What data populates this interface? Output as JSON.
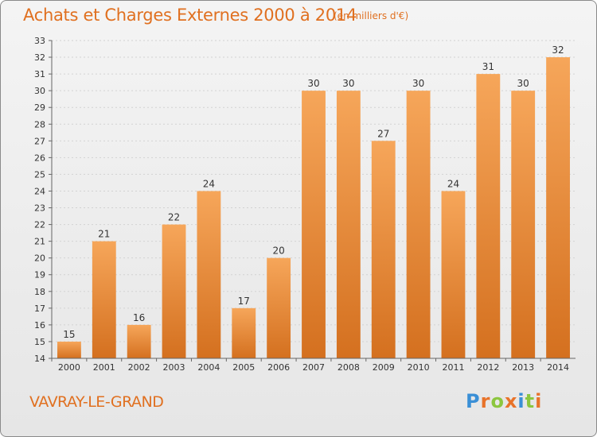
{
  "title": "Achats et Charges Externes 2000 à 2014",
  "subtitle": "(en milliers d'€)",
  "commune": "VAVRAY-LE-GRAND",
  "logo": {
    "letters": [
      "P",
      "r",
      "o",
      "x",
      "i",
      "t",
      "i"
    ],
    "colors": [
      "#3a8fd6",
      "#e8732a",
      "#8cc63f",
      "#e8732a",
      "#3a8fd6",
      "#8cc63f",
      "#e8732a"
    ]
  },
  "colors": {
    "bar_top": "#f6a65a",
    "bar_bottom": "#d4701f",
    "text_accent": "#e07020"
  },
  "chart_data": {
    "type": "bar",
    "title": "Achats et Charges Externes 2000 à 2014",
    "subtitle": "(en milliers d'€)",
    "xlabel": "",
    "ylabel": "",
    "categories": [
      "2000",
      "2001",
      "2002",
      "2003",
      "2004",
      "2005",
      "2006",
      "2007",
      "2008",
      "2009",
      "2010",
      "2011",
      "2012",
      "2013",
      "2014"
    ],
    "values": [
      15,
      21,
      16,
      22,
      24,
      17,
      20,
      30,
      30,
      27,
      30,
      24,
      31,
      30,
      32
    ],
    "ylim": [
      14,
      33
    ],
    "yticks": [
      14,
      15,
      16,
      17,
      18,
      19,
      20,
      21,
      22,
      23,
      24,
      25,
      26,
      27,
      28,
      29,
      30,
      31,
      32,
      33
    ],
    "grid": true
  }
}
